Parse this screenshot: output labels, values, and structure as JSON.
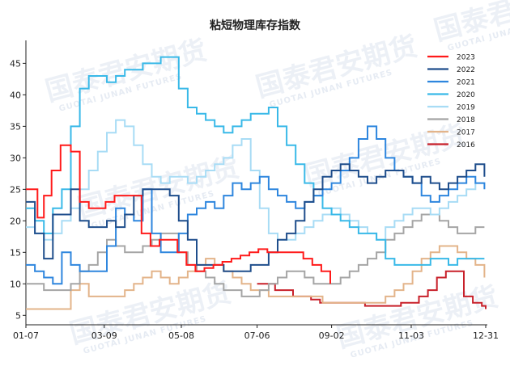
{
  "watermark": {
    "brand": "国泰君安期货",
    "brand_en": "GUOTAI JUNAN FUTURES"
  },
  "chart_data": {
    "type": "line",
    "title": "粘短物理库存指数",
    "xlabel": "",
    "ylabel": "",
    "x_ticks": [
      "01-07",
      "03-09",
      "05-08",
      "07-06",
      "09-02",
      "11-03",
      "12-31"
    ],
    "y_ticks": [
      5,
      10,
      15,
      20,
      25,
      30,
      35,
      40,
      45
    ],
    "x_range": [
      "01-07",
      "12-31"
    ],
    "ylim": [
      3.5,
      48
    ],
    "grid": false,
    "legend_position": "top-right",
    "series": [
      {
        "name": "2023",
        "color": "#ff1a1a",
        "width": 2,
        "x": [
          "01-07",
          "01-13",
          "01-16",
          "01-21",
          "01-27",
          "02-03",
          "02-11",
          "02-18",
          "02-25",
          "03-03",
          "03-10",
          "03-17",
          "03-24",
          "03-31",
          "04-07",
          "04-14",
          "04-21",
          "04-28",
          "05-05",
          "05-12",
          "05-19",
          "05-26",
          "06-02",
          "06-09",
          "06-16",
          "06-23",
          "06-30",
          "07-07",
          "07-14",
          "07-21",
          "07-28",
          "08-04",
          "08-11",
          "08-18",
          "08-25",
          "09-01"
        ],
        "y": [
          25,
          25,
          20.5,
          24,
          28,
          32,
          31,
          23,
          22,
          22,
          23,
          24,
          24,
          24,
          18,
          16,
          17,
          17,
          15,
          13,
          12,
          12.5,
          13,
          13.5,
          14,
          14.5,
          15,
          15.5,
          15,
          15,
          15,
          15,
          14,
          13,
          12,
          10
        ]
      },
      {
        "name": "2022",
        "color": "#1f4e8c",
        "width": 2,
        "x": [
          "01-07",
          "01-14",
          "01-21",
          "01-28",
          "02-04",
          "02-11",
          "02-18",
          "02-25",
          "03-04",
          "03-11",
          "03-18",
          "03-25",
          "04-01",
          "04-08",
          "04-15",
          "04-22",
          "04-29",
          "05-06",
          "05-13",
          "05-20",
          "05-27",
          "06-03",
          "06-10",
          "06-17",
          "06-24",
          "07-01",
          "07-08",
          "07-15",
          "07-22",
          "07-29",
          "08-05",
          "08-12",
          "08-19",
          "08-26",
          "09-02",
          "09-09",
          "09-16",
          "09-23",
          "09-30",
          "10-07",
          "10-14",
          "10-21",
          "10-28",
          "11-04",
          "11-11",
          "11-18",
          "11-25",
          "12-02",
          "12-09",
          "12-16",
          "12-23",
          "12-30"
        ],
        "y": [
          23,
          18,
          14,
          21,
          21,
          25,
          20,
          19,
          19,
          20,
          19,
          21,
          24,
          25,
          25,
          25,
          24,
          20,
          17,
          13,
          13,
          13,
          12,
          12,
          12,
          13,
          13,
          15,
          17,
          18,
          20,
          23,
          25,
          27,
          28,
          29,
          28,
          27,
          26,
          27,
          28,
          28,
          27,
          26,
          27,
          26,
          25,
          26,
          27,
          28,
          29,
          27
        ]
      },
      {
        "name": "2021",
        "color": "#2e86de",
        "width": 2,
        "x": [
          "01-07",
          "01-14",
          "01-21",
          "01-28",
          "02-04",
          "02-11",
          "02-18",
          "02-25",
          "03-04",
          "03-11",
          "03-18",
          "03-25",
          "04-01",
          "04-08",
          "04-15",
          "04-22",
          "04-29",
          "05-06",
          "05-13",
          "05-20",
          "05-27",
          "06-03",
          "06-10",
          "06-17",
          "06-24",
          "07-01",
          "07-08",
          "07-15",
          "07-22",
          "07-29",
          "08-05",
          "08-12",
          "08-19",
          "08-26",
          "09-02",
          "09-09",
          "09-16",
          "09-23",
          "09-30",
          "10-07",
          "10-14",
          "10-21",
          "10-28",
          "11-04",
          "11-11",
          "11-18",
          "11-25",
          "12-02",
          "12-09",
          "12-16",
          "12-23",
          "12-30"
        ],
        "y": [
          13,
          12,
          11,
          10,
          15,
          13,
          12,
          12,
          12,
          16,
          22,
          21,
          20,
          25,
          18,
          15,
          15,
          18,
          21,
          22,
          23,
          22,
          24,
          26,
          25,
          26,
          27,
          25,
          24,
          23,
          22,
          23,
          24,
          25,
          26,
          28,
          30,
          33,
          35,
          33,
          30,
          28,
          27,
          26,
          24,
          23,
          24,
          25,
          26,
          27,
          26,
          25
        ]
      },
      {
        "name": "2020",
        "color": "#39b9e8",
        "width": 2,
        "x": [
          "01-07",
          "01-14",
          "01-21",
          "01-28",
          "02-04",
          "02-11",
          "02-18",
          "02-25",
          "03-04",
          "03-11",
          "03-18",
          "03-25",
          "04-01",
          "04-08",
          "04-15",
          "04-22",
          "04-29",
          "05-06",
          "05-13",
          "05-20",
          "05-27",
          "06-03",
          "06-10",
          "06-17",
          "06-24",
          "07-01",
          "07-08",
          "07-15",
          "07-22",
          "07-29",
          "08-05",
          "08-12",
          "08-19",
          "08-26",
          "09-02",
          "09-09",
          "09-16",
          "09-23",
          "09-30",
          "10-07",
          "10-14",
          "10-21",
          "10-28",
          "11-04",
          "11-11",
          "11-18",
          "11-25",
          "12-02",
          "12-09",
          "12-16",
          "12-23",
          "12-30"
        ],
        "y": [
          22,
          20,
          18,
          22,
          25,
          35,
          41,
          43,
          43,
          42,
          43,
          44,
          44,
          45,
          45,
          46,
          46,
          41,
          38,
          37,
          36,
          35,
          34,
          35,
          36,
          37,
          37,
          38,
          35,
          32,
          29,
          26,
          24,
          22,
          21,
          20,
          19,
          18,
          18,
          17,
          14,
          13,
          13,
          13,
          13,
          14,
          14,
          13,
          14,
          14,
          14,
          14
        ]
      },
      {
        "name": "2019",
        "color": "#a8dcf5",
        "width": 2,
        "x": [
          "01-07",
          "01-14",
          "01-21",
          "01-28",
          "02-04",
          "02-11",
          "02-18",
          "02-25",
          "03-04",
          "03-11",
          "03-18",
          "03-25",
          "04-01",
          "04-08",
          "04-15",
          "04-22",
          "04-29",
          "05-06",
          "05-13",
          "05-20",
          "05-27",
          "06-03",
          "06-10",
          "06-17",
          "06-24",
          "07-01",
          "07-08",
          "07-15",
          "07-22",
          "07-29",
          "08-05",
          "08-12",
          "08-19",
          "08-26",
          "09-02",
          "09-09",
          "09-16",
          "09-23",
          "09-30",
          "10-07",
          "10-14",
          "10-21",
          "10-28",
          "11-04",
          "11-11",
          "11-18",
          "11-25",
          "12-02",
          "12-09",
          "12-16",
          "12-23",
          "12-30"
        ],
        "y": [
          19,
          18,
          17,
          18,
          20,
          22,
          25,
          28,
          31,
          34,
          36,
          35,
          32,
          29,
          27,
          26,
          27,
          27,
          26,
          27,
          28,
          29,
          30,
          32,
          33,
          28,
          22,
          18,
          17,
          17,
          18,
          19,
          20,
          21,
          22,
          21,
          20,
          19,
          18,
          17,
          19,
          20,
          21,
          22,
          22,
          21,
          22,
          23,
          24,
          25,
          26,
          26
        ]
      },
      {
        "name": "2018",
        "color": "#a5a5a5",
        "width": 2,
        "x": [
          "01-07",
          "01-14",
          "01-21",
          "01-28",
          "02-04",
          "02-11",
          "02-18",
          "02-25",
          "03-04",
          "03-11",
          "03-18",
          "03-25",
          "04-01",
          "04-08",
          "04-15",
          "04-22",
          "04-29",
          "05-06",
          "05-13",
          "05-20",
          "05-27",
          "06-03",
          "06-10",
          "06-17",
          "06-24",
          "07-01",
          "07-08",
          "07-15",
          "07-22",
          "07-29",
          "08-05",
          "08-12",
          "08-19",
          "08-26",
          "09-02",
          "09-09",
          "09-16",
          "09-23",
          "09-30",
          "10-07",
          "10-14",
          "10-21",
          "10-28",
          "11-04",
          "11-11",
          "11-18",
          "11-25",
          "12-02",
          "12-09",
          "12-16",
          "12-23",
          "12-30"
        ],
        "y": [
          10,
          10,
          9,
          9,
          9,
          10,
          12,
          13,
          15,
          17,
          16,
          15,
          15,
          16,
          17,
          18,
          18,
          15,
          13,
          12,
          11,
          10,
          9,
          9,
          8,
          8,
          9,
          10,
          11,
          12,
          12,
          11,
          10,
          10,
          10,
          11,
          12,
          13,
          14,
          15,
          17,
          18,
          19,
          20,
          21,
          21,
          20,
          19,
          18,
          18,
          19,
          19
        ]
      },
      {
        "name": "2017",
        "color": "#e3b48a",
        "width": 2,
        "x": [
          "01-07",
          "01-14",
          "01-21",
          "01-28",
          "02-04",
          "02-11",
          "02-18",
          "02-25",
          "03-04",
          "03-11",
          "03-18",
          "03-25",
          "04-01",
          "04-08",
          "04-15",
          "04-22",
          "04-29",
          "05-06",
          "05-13",
          "05-20",
          "05-27",
          "06-03",
          "06-10",
          "06-17",
          "06-24",
          "07-01",
          "07-08",
          "07-15",
          "07-22",
          "07-29",
          "08-05",
          "08-12",
          "08-19",
          "08-26",
          "09-02",
          "09-09",
          "09-16",
          "09-23",
          "09-30",
          "10-07",
          "10-14",
          "10-21",
          "10-28",
          "11-04",
          "11-11",
          "11-18",
          "11-25",
          "12-02",
          "12-09",
          "12-16",
          "12-23",
          "12-30"
        ],
        "y": [
          6,
          6,
          6,
          6,
          6,
          9,
          10,
          8,
          8,
          8,
          8,
          9,
          10,
          11,
          12,
          11,
          10,
          11,
          12,
          13,
          14,
          13,
          12,
          11,
          10,
          9,
          9,
          8,
          8,
          8,
          8,
          8,
          8,
          7,
          7,
          7,
          7,
          7,
          7,
          7,
          8,
          9,
          10,
          12,
          14,
          15,
          16,
          16,
          15,
          14,
          13,
          11
        ]
      },
      {
        "name": "2016",
        "color": "#c8202a",
        "width": 2,
        "x": [
          "07-06",
          "07-13",
          "07-20",
          "07-27",
          "08-03",
          "08-10",
          "08-17",
          "08-24",
          "08-31",
          "09-07",
          "09-14",
          "09-21",
          "09-28",
          "10-05",
          "10-12",
          "10-19",
          "10-26",
          "11-02",
          "11-09",
          "11-16",
          "11-23",
          "11-30",
          "12-07",
          "12-14",
          "12-21",
          "12-28",
          "12-31"
        ],
        "y": [
          10,
          10,
          9,
          9,
          8,
          8,
          7.5,
          7,
          7,
          7,
          7,
          7,
          6.5,
          6.5,
          6.5,
          6.5,
          7,
          7,
          8,
          9,
          11,
          12,
          12,
          8,
          7,
          6.5,
          6
        ]
      }
    ]
  }
}
